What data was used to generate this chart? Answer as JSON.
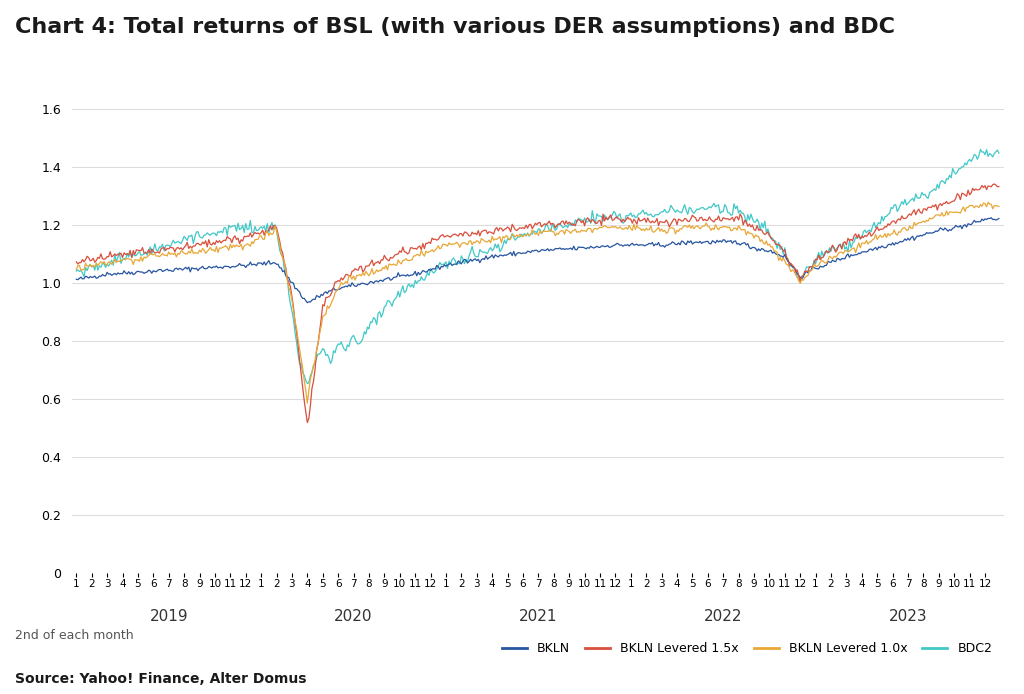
{
  "title": "Chart 4: Total returns of BSL (with various DER assumptions) and BDC",
  "source_text": "Source: Yahoo! Finance, Alter Domus",
  "xlabel_note": "2nd of each month",
  "ylim": [
    0,
    1.7
  ],
  "yticks": [
    0,
    0.2,
    0.4,
    0.6,
    0.8,
    1.0,
    1.2,
    1.4,
    1.6
  ],
  "years": [
    2019,
    2020,
    2021,
    2022,
    2023
  ],
  "colors": {
    "BKLN": "#2855a0",
    "BKLN_15x": "#d94f3d",
    "BKLN_10x": "#e8a838",
    "BDC2": "#41c8c8"
  },
  "legend_labels": [
    "BKLN",
    "BKLN Levered 1.5x",
    "BKLN Levered 1.0x",
    "BDC2"
  ],
  "background_color": "#ffffff",
  "grid_color": "#dddddd",
  "title_fontsize": 16,
  "axis_fontsize": 9,
  "legend_fontsize": 9,
  "line_width": 0.9,
  "n_months": 60,
  "points_per_month": 10,
  "month_tick_labels": [
    "1",
    "2",
    "3",
    "4",
    "5",
    "6",
    "7",
    "8",
    "9",
    "10",
    "11",
    "12",
    "1",
    "2",
    "3",
    "4",
    "5",
    "6",
    "7",
    "8",
    "9",
    "10",
    "11",
    "12",
    "1",
    "2",
    "3",
    "4",
    "5",
    "6",
    "7",
    "8",
    "9",
    "10",
    "11",
    "12",
    "1",
    "2",
    "3",
    "4",
    "5",
    "6",
    "7",
    "8",
    "9",
    "10",
    "11",
    "12",
    "1",
    "2",
    "3",
    "4",
    "5",
    "6",
    "7",
    "8",
    "9",
    "10",
    "11",
    "12"
  ]
}
